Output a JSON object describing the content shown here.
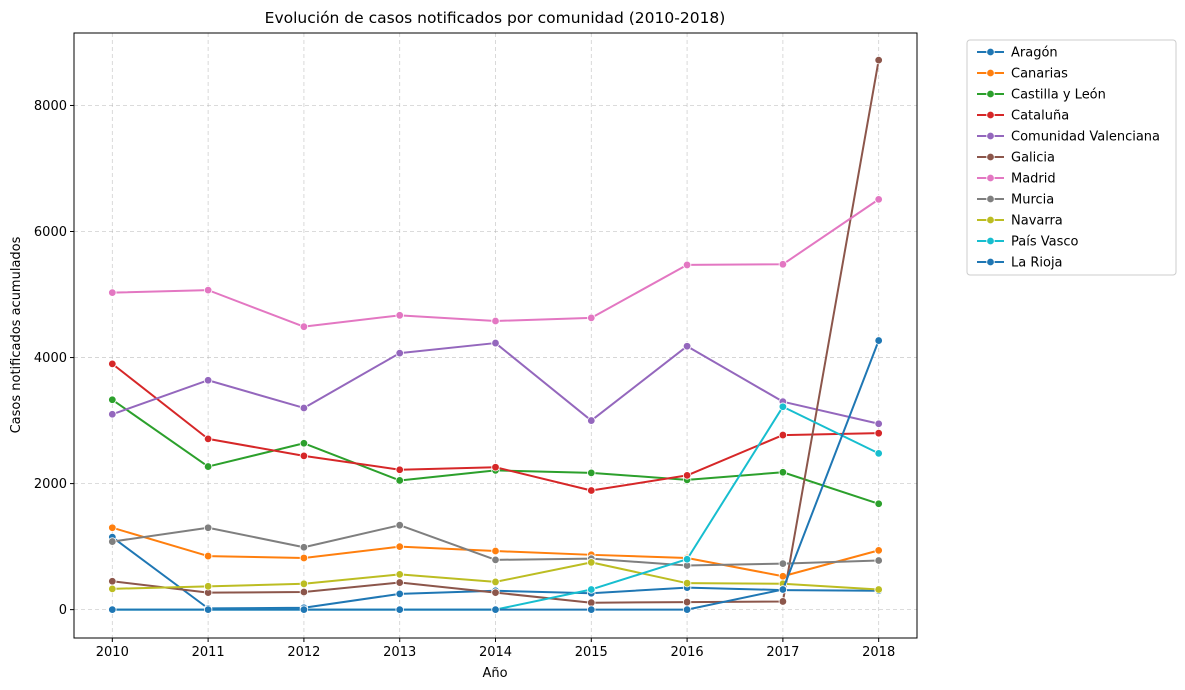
{
  "chart_data": {
    "type": "line",
    "title": "Evolución de casos notificados por comunidad (2010-2018)",
    "xlabel": "Año",
    "ylabel": "Casos notificados acumulados",
    "x": [
      2010,
      2011,
      2012,
      2013,
      2014,
      2015,
      2016,
      2017,
      2018
    ],
    "xlim": [
      2009.6,
      2018.4
    ],
    "ylim": [
      -450,
      9150
    ],
    "yticks": [
      0,
      2000,
      4000,
      6000,
      8000
    ],
    "grid": true,
    "legend_position": "outside-right",
    "series": [
      {
        "name": "Aragón",
        "color": "#1f77b4",
        "values": [
          1150,
          20,
          30,
          250,
          300,
          260,
          350,
          310,
          300
        ]
      },
      {
        "name": "Canarias",
        "color": "#ff7f0e",
        "values": [
          1300,
          850,
          820,
          1000,
          930,
          870,
          820,
          530,
          940
        ]
      },
      {
        "name": "Castilla y León",
        "color": "#2ca02c",
        "values": [
          3330,
          2270,
          2640,
          2050,
          2210,
          2170,
          2060,
          2180,
          1680
        ]
      },
      {
        "name": "Cataluña",
        "color": "#d62728",
        "values": [
          3900,
          2710,
          2440,
          2220,
          2260,
          1890,
          2130,
          2770,
          2800
        ]
      },
      {
        "name": "Comunidad Valenciana",
        "color": "#9467bd",
        "values": [
          3100,
          3640,
          3200,
          4070,
          4230,
          3000,
          4180,
          3300,
          2950
        ]
      },
      {
        "name": "Galicia",
        "color": "#8c564b",
        "values": [
          450,
          270,
          280,
          430,
          270,
          110,
          120,
          130,
          8720
        ]
      },
      {
        "name": "Madrid",
        "color": "#e377c2",
        "values": [
          5030,
          5070,
          4490,
          4670,
          4580,
          4630,
          5470,
          5480,
          6510
        ]
      },
      {
        "name": "Murcia",
        "color": "#7f7f7f",
        "values": [
          1080,
          1300,
          990,
          1340,
          790,
          810,
          700,
          730,
          780
        ]
      },
      {
        "name": "Navarra",
        "color": "#bcbd22",
        "values": [
          330,
          370,
          410,
          560,
          440,
          750,
          420,
          410,
          320
        ]
      },
      {
        "name": "País Vasco",
        "color": "#17becf",
        "values": [
          0,
          0,
          0,
          0,
          0,
          320,
          800,
          3220,
          2480
        ]
      },
      {
        "name": "La Rioja",
        "color": "#1f77b4",
        "values": [
          0,
          0,
          0,
          0,
          0,
          0,
          0,
          320,
          4270
        ]
      }
    ]
  }
}
